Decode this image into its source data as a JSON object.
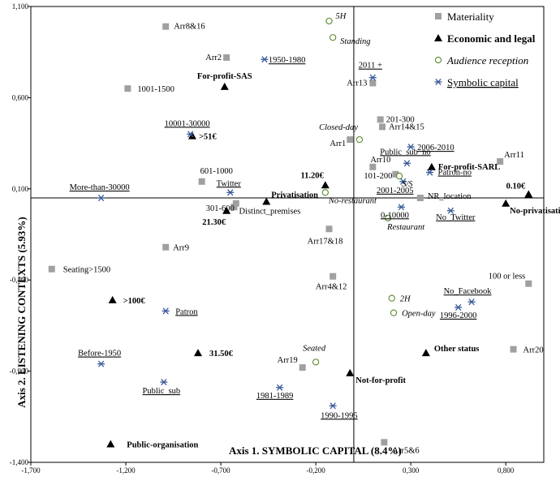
{
  "chart_data": {
    "type": "scatter",
    "xlabel": "Axis 1. SYMBOLIC CAPITAL (8.4%)",
    "ylabel": "Axis 2. LISTENING CONTEXTS (5.93%)",
    "xlim": [
      -1.7,
      1.0
    ],
    "ylim": [
      -1.4,
      1.1
    ],
    "xticks": [
      -1.7,
      -1.2,
      -0.7,
      -0.2,
      0.3,
      0.8
    ],
    "xtick_labels": [
      "-1,700",
      "-1,200",
      "-0,700",
      "-0,200",
      "0,300",
      "0,800"
    ],
    "yticks": [
      1.1,
      0.6,
      0.1,
      -0.4,
      -0.9,
      -1.4
    ],
    "ytick_labels": [
      "1,100",
      "0,600",
      "0,100",
      "-0,400",
      "-0,900",
      "-1,400"
    ],
    "legend_position": "top-right",
    "series": [
      {
        "name": "Materiality",
        "marker": "square",
        "color": "#a0a0a0",
        "points": [
          {
            "label": "Arr8&16",
            "x": -0.99,
            "y": 0.99,
            "style": "normal"
          },
          {
            "label": "Arr2",
            "x": -0.67,
            "y": 0.82,
            "style": "normal"
          },
          {
            "label": "1001-1500",
            "x": -1.19,
            "y": 0.65,
            "style": "normal"
          },
          {
            "label": "Arr13",
            "x": 0.1,
            "y": 0.68,
            "style": "normal"
          },
          {
            "label": "201-300",
            "x": 0.14,
            "y": 0.48,
            "style": "normal"
          },
          {
            "label": "Arr14&15",
            "x": 0.15,
            "y": 0.44,
            "style": "normal"
          },
          {
            "label": "Arr1",
            "x": -0.02,
            "y": 0.37,
            "style": "normal"
          },
          {
            "label": "Arr11",
            "x": 0.77,
            "y": 0.25,
            "style": "normal"
          },
          {
            "label": "Arr10",
            "x": 0.1,
            "y": 0.22,
            "style": "normal"
          },
          {
            "label": "101-200",
            "x": 0.22,
            "y": 0.18,
            "style": "normal"
          },
          {
            "label": "601-1000",
            "x": -0.8,
            "y": 0.14,
            "style": "normal"
          },
          {
            "label": "301-600",
            "x": -0.62,
            "y": 0.02,
            "style": "normal"
          },
          {
            "label": "Distinct_premises",
            "x": -0.63,
            "y": 0.0,
            "style": "normal"
          },
          {
            "label": "NR_location",
            "x": 0.35,
            "y": 0.05,
            "style": "normal"
          },
          {
            "label": "Arr17&18",
            "x": -0.13,
            "y": -0.12,
            "style": "normal"
          },
          {
            "label": "Arr9",
            "x": -0.99,
            "y": -0.22,
            "style": "normal"
          },
          {
            "label": "Seating>1500",
            "x": -1.59,
            "y": -0.34,
            "style": "normal"
          },
          {
            "label": "Arr4&12",
            "x": -0.11,
            "y": -0.38,
            "style": "normal"
          },
          {
            "label": "100 or less",
            "x": 0.92,
            "y": -0.42,
            "style": "normal"
          },
          {
            "label": "Arr20",
            "x": 0.84,
            "y": -0.78,
            "style": "normal"
          },
          {
            "label": "Arr19",
            "x": -0.27,
            "y": -0.88,
            "style": "normal"
          },
          {
            "label": "Arr5&6",
            "x": 0.16,
            "y": -1.29,
            "style": "normal"
          }
        ]
      },
      {
        "name": "Economic and legal",
        "marker": "triangle",
        "color": "#000000",
        "points": [
          {
            "label": "For-profit-SAS",
            "x": -0.68,
            "y": 0.66,
            "style": "bold"
          },
          {
            "label": ">51€",
            "x": -0.85,
            "y": 0.39,
            "style": "bold"
          },
          {
            "label": "For-profit-SARL",
            "x": 0.41,
            "y": 0.22,
            "style": "bold"
          },
          {
            "label": "11.20€",
            "x": -0.15,
            "y": 0.12,
            "style": "bold"
          },
          {
            "label": "Privatisation",
            "x": -0.46,
            "y": 0.03,
            "style": "bold"
          },
          {
            "label": "0.10€",
            "x": 0.92,
            "y": 0.07,
            "style": "bold"
          },
          {
            "label": "No-privatisation",
            "x": 0.8,
            "y": 0.02,
            "style": "bold"
          },
          {
            "label": "21.30€",
            "x": -0.67,
            "y": -0.02,
            "style": "bold"
          },
          {
            "label": ">100€",
            "x": -1.27,
            "y": -0.51,
            "style": "bold"
          },
          {
            "label": "31.50€",
            "x": -0.82,
            "y": -0.8,
            "style": "bold"
          },
          {
            "label": "Other status",
            "x": 0.38,
            "y": -0.8,
            "style": "bold"
          },
          {
            "label": "Not-for-profit",
            "x": -0.02,
            "y": -0.91,
            "style": "bold"
          },
          {
            "label": "Public-organisation",
            "x": -1.28,
            "y": -1.3,
            "style": "bold"
          }
        ]
      },
      {
        "name": "Audience reception",
        "marker": "circle",
        "color": "#5a8a2a",
        "points": [
          {
            "label": "5H",
            "x": -0.13,
            "y": 1.02,
            "style": "italic"
          },
          {
            "label": "Standing",
            "x": -0.11,
            "y": 0.93,
            "style": "italic"
          },
          {
            "label": "Closed-day",
            "x": 0.03,
            "y": 0.37,
            "style": "italic"
          },
          {
            "label": "No-restaurant",
            "x": -0.15,
            "y": 0.08,
            "style": "italic"
          },
          {
            "label": "S/S",
            "x": 0.24,
            "y": 0.17,
            "style": "italic"
          },
          {
            "label": "Restaurant",
            "x": 0.18,
            "y": -0.06,
            "style": "italic"
          },
          {
            "label": "2H",
            "x": 0.2,
            "y": -0.5,
            "style": "italic"
          },
          {
            "label": "Open-day",
            "x": 0.21,
            "y": -0.58,
            "style": "italic"
          },
          {
            "label": "Seated",
            "x": -0.2,
            "y": -0.85,
            "style": "italic"
          }
        ]
      },
      {
        "name": "Symbolic capital",
        "marker": "asterisk",
        "color": "#3a5a9a",
        "points": [
          {
            "label": "1950-1980",
            "x": -0.47,
            "y": 0.81,
            "style": "underline"
          },
          {
            "label": "2011 +",
            "x": 0.1,
            "y": 0.71,
            "style": "underline"
          },
          {
            "label": "10001-30000",
            "x": -0.86,
            "y": 0.4,
            "style": "underline"
          },
          {
            "label": "2006-2010",
            "x": 0.3,
            "y": 0.33,
            "style": "underline"
          },
          {
            "label": "Public_sub_no",
            "x": 0.28,
            "y": 0.24,
            "style": "underline"
          },
          {
            "label": "Patron-no",
            "x": 0.4,
            "y": 0.19,
            "style": "underline"
          },
          {
            "label": "2001-2005",
            "x": 0.26,
            "y": 0.14,
            "style": "underline"
          },
          {
            "label": "More-than-30000",
            "x": -1.33,
            "y": 0.05,
            "style": "underline"
          },
          {
            "label": "Twitter",
            "x": -0.65,
            "y": 0.08,
            "style": "underline"
          },
          {
            "label": "0-10000",
            "x": 0.25,
            "y": 0.0,
            "style": "underline"
          },
          {
            "label": "No_Twitter",
            "x": 0.51,
            "y": -0.02,
            "style": "underline"
          },
          {
            "label": "Patron",
            "x": -0.99,
            "y": -0.57,
            "style": "underline"
          },
          {
            "label": "No_Facebook",
            "x": 0.62,
            "y": -0.52,
            "style": "underline"
          },
          {
            "label": "1996-2000",
            "x": 0.55,
            "y": -0.55,
            "style": "underline"
          },
          {
            "label": "Before-1950",
            "x": -1.33,
            "y": -0.86,
            "style": "underline"
          },
          {
            "label": "Public_sub",
            "x": -1.0,
            "y": -0.96,
            "style": "underline"
          },
          {
            "label": "1981-1989",
            "x": -0.39,
            "y": -0.99,
            "style": "underline"
          },
          {
            "label": "1990-1995",
            "x": -0.11,
            "y": -1.09,
            "style": "underline"
          }
        ]
      }
    ]
  }
}
